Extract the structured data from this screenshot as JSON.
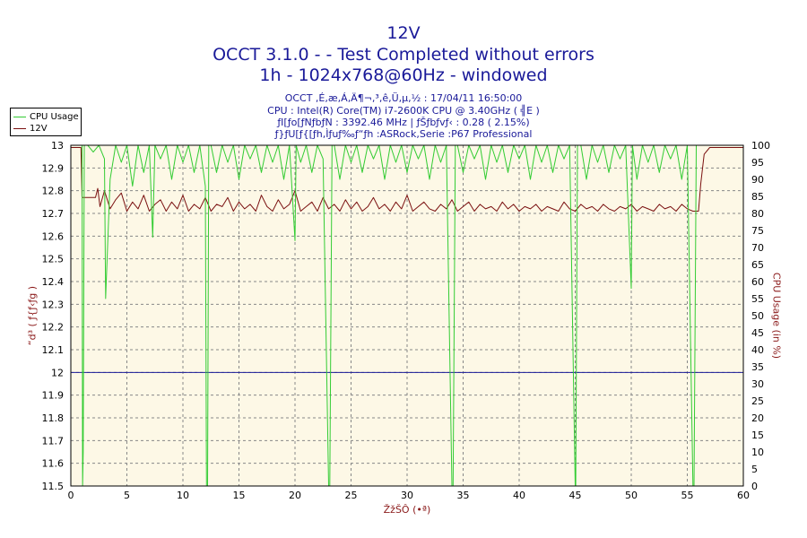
{
  "header": {
    "title": "12V",
    "subtitle": "OCCT 3.1.0 -  - Test Completed without errors",
    "subtitle2": "1h - 1024x768@60Hz - windowed",
    "info_line1": "OCCT ,É,æ,Á,Ä¶¬,³,ê,Ü,µ,½ : 17/04/11 16:50:00",
    "info_line2": "CPU : Intel(R) Core(TM) i7-2600K CPU @ 3.40GHz ( ╣E )",
    "info_line3": "ƒI[ƒo[ƒNƒbƒN : 3392.46 MHz | ƒŠƒbƒvƒ‹ : 0.28 ( 2.15%)",
    "info_line4": "ƒ}ƒU[ƒ{[ƒh,Ìƒuƒ‰ƒ“ƒh :ASRock,Serie :P67 Professional"
  },
  "legend": {
    "items": [
      "CPU Usage",
      "12V"
    ]
  },
  "colors": {
    "cpu": "#33cc33",
    "voltage": "#7a1010",
    "threshold": "#1a1a99",
    "plot_bg": "#fdf8e6",
    "grid": "#888888",
    "axis_text": "#8b1a1a"
  },
  "chart_data": {
    "type": "line",
    "title": "12V",
    "xlabel": "ŽžŠÔ (•ª)",
    "ylabel_left": "“d³ ( ƒ{ƒ‹ƒg )",
    "ylabel_right": "CPU Usage (in %)",
    "xlim": [
      0,
      60
    ],
    "ylim_left": [
      11.5,
      13
    ],
    "ylim_right": [
      0,
      100
    ],
    "x_ticks": [
      0,
      5,
      10,
      15,
      20,
      25,
      30,
      35,
      40,
      45,
      50,
      55,
      60
    ],
    "y_ticks_left": [
      "13",
      "12.9",
      "12.8",
      "12.7",
      "12.6",
      "12.5",
      "12.4",
      "12.3",
      "12.2",
      "12.1",
      "12",
      "11.9",
      "11.8",
      "11.7",
      "11.6",
      "11.5"
    ],
    "y_ticks_right": [
      100,
      95,
      90,
      85,
      80,
      75,
      70,
      65,
      60,
      55,
      50,
      45,
      40,
      35,
      30,
      25,
      20,
      15,
      10,
      5,
      0
    ],
    "grid": true,
    "threshold_line": 12,
    "series": [
      {
        "name": "12V",
        "axis": "left",
        "x": [
          0,
          0.9,
          1,
          1.3,
          2.2,
          2.4,
          2.6,
          3,
          3.5,
          4,
          4.5,
          5,
          5.5,
          6,
          6.5,
          7,
          7.5,
          8,
          8.5,
          9,
          9.5,
          10,
          10.5,
          11,
          11.5,
          12,
          12.5,
          13,
          13.5,
          14,
          14.5,
          15,
          15.5,
          16,
          16.5,
          17,
          17.5,
          18,
          18.5,
          19,
          19.5,
          20,
          20.5,
          21,
          21.5,
          22,
          22.5,
          23,
          23.5,
          24,
          24.5,
          25,
          25.5,
          26,
          26.5,
          27,
          27.5,
          28,
          28.5,
          29,
          29.5,
          30,
          30.5,
          31,
          31.5,
          32,
          32.5,
          33,
          33.5,
          34,
          34.5,
          35,
          35.5,
          36,
          36.5,
          37,
          37.5,
          38,
          38.5,
          39,
          39.5,
          40,
          40.5,
          41,
          41.5,
          42,
          42.5,
          43,
          43.5,
          44,
          44.5,
          45,
          45.5,
          46,
          46.5,
          47,
          47.5,
          48,
          48.5,
          49,
          49.5,
          50,
          50.5,
          51,
          51.5,
          52,
          52.5,
          53,
          53.5,
          54,
          54.5,
          55,
          55.5,
          56,
          56.2,
          56.5,
          57,
          57.5,
          58,
          58.5,
          59,
          60
        ],
        "y": [
          12.99,
          12.99,
          12.77,
          12.77,
          12.77,
          12.81,
          12.73,
          12.8,
          12.72,
          12.76,
          12.79,
          12.71,
          12.75,
          12.72,
          12.78,
          12.71,
          12.74,
          12.76,
          12.71,
          12.75,
          12.72,
          12.78,
          12.71,
          12.74,
          12.72,
          12.77,
          12.71,
          12.74,
          12.73,
          12.77,
          12.71,
          12.75,
          12.72,
          12.74,
          12.71,
          12.78,
          12.73,
          12.71,
          12.76,
          12.72,
          12.74,
          12.8,
          12.71,
          12.73,
          12.75,
          12.71,
          12.77,
          12.72,
          12.74,
          12.71,
          12.76,
          12.72,
          12.75,
          12.71,
          12.73,
          12.77,
          12.72,
          12.74,
          12.71,
          12.75,
          12.72,
          12.78,
          12.71,
          12.73,
          12.75,
          12.72,
          12.71,
          12.74,
          12.72,
          12.76,
          12.71,
          12.73,
          12.75,
          12.71,
          12.74,
          12.72,
          12.73,
          12.71,
          12.75,
          12.72,
          12.74,
          12.71,
          12.73,
          12.72,
          12.74,
          12.71,
          12.73,
          12.72,
          12.71,
          12.75,
          12.72,
          12.71,
          12.74,
          12.72,
          12.73,
          12.71,
          12.74,
          12.72,
          12.71,
          12.73,
          12.72,
          12.74,
          12.71,
          12.73,
          12.72,
          12.71,
          12.74,
          12.72,
          12.73,
          12.71,
          12.74,
          12.72,
          12.71,
          12.71,
          12.83,
          12.96,
          12.99,
          12.99,
          12.99,
          12.99,
          12.99,
          12.99
        ]
      },
      {
        "name": "CPU Usage",
        "axis": "right",
        "x": [
          0,
          1,
          1.05,
          1.1,
          1.15,
          1.2,
          1.5,
          2,
          2.5,
          3,
          3.1,
          3.5,
          4,
          4.5,
          5,
          5.5,
          6,
          6.5,
          7,
          7.3,
          7.5,
          8,
          8.5,
          9,
          9.5,
          10,
          10.5,
          11,
          11.5,
          12,
          12.1,
          12.2,
          12.3,
          12.5,
          13,
          13.5,
          14,
          14.5,
          15,
          15.5,
          16,
          16.5,
          17,
          17.5,
          18,
          18.5,
          19,
          19.5,
          20,
          20.1,
          20.5,
          21,
          21.5,
          22,
          22.5,
          23,
          23.1,
          23.3,
          23.5,
          24,
          24.5,
          25,
          25.5,
          26,
          26.5,
          27,
          27.5,
          28,
          28.5,
          29,
          29.5,
          30,
          30.5,
          31,
          31.5,
          32,
          32.5,
          33,
          33.5,
          34,
          34.1,
          34.3,
          34.5,
          35,
          35.5,
          36,
          36.5,
          37,
          37.5,
          38,
          38.5,
          39,
          39.5,
          40,
          40.5,
          41,
          41.5,
          42,
          42.5,
          43,
          43.5,
          44,
          44.5,
          45,
          45.05,
          45.2,
          45.5,
          46,
          46.5,
          47,
          47.5,
          48,
          48.5,
          49,
          49.5,
          50,
          50.1,
          50.5,
          51,
          51.5,
          52,
          52.5,
          53,
          53.5,
          54,
          54.5,
          55,
          55.5,
          55.6,
          55.8,
          56,
          56.5,
          57,
          58,
          59,
          60
        ],
        "y": [
          100,
          100,
          0,
          10,
          55,
          100,
          100,
          98,
          100,
          96,
          55,
          90,
          100,
          95,
          100,
          88,
          100,
          92,
          100,
          73,
          100,
          96,
          100,
          90,
          100,
          95,
          100,
          92,
          100,
          88,
          0,
          0,
          100,
          100,
          92,
          100,
          95,
          100,
          90,
          100,
          96,
          100,
          92,
          100,
          95,
          100,
          90,
          100,
          72,
          100,
          95,
          100,
          92,
          100,
          96,
          0,
          0,
          100,
          100,
          90,
          100,
          95,
          100,
          92,
          100,
          96,
          100,
          90,
          100,
          95,
          100,
          92,
          100,
          96,
          100,
          90,
          100,
          95,
          100,
          0,
          0,
          100,
          100,
          92,
          100,
          96,
          100,
          90,
          100,
          95,
          100,
          92,
          100,
          96,
          100,
          90,
          100,
          95,
          100,
          92,
          100,
          96,
          100,
          0,
          0,
          100,
          100,
          90,
          100,
          95,
          100,
          92,
          100,
          96,
          100,
          58,
          100,
          90,
          100,
          95,
          100,
          92,
          100,
          96,
          100,
          90,
          100,
          0,
          0,
          100,
          100,
          100,
          100,
          100,
          100,
          100
        ]
      }
    ]
  }
}
